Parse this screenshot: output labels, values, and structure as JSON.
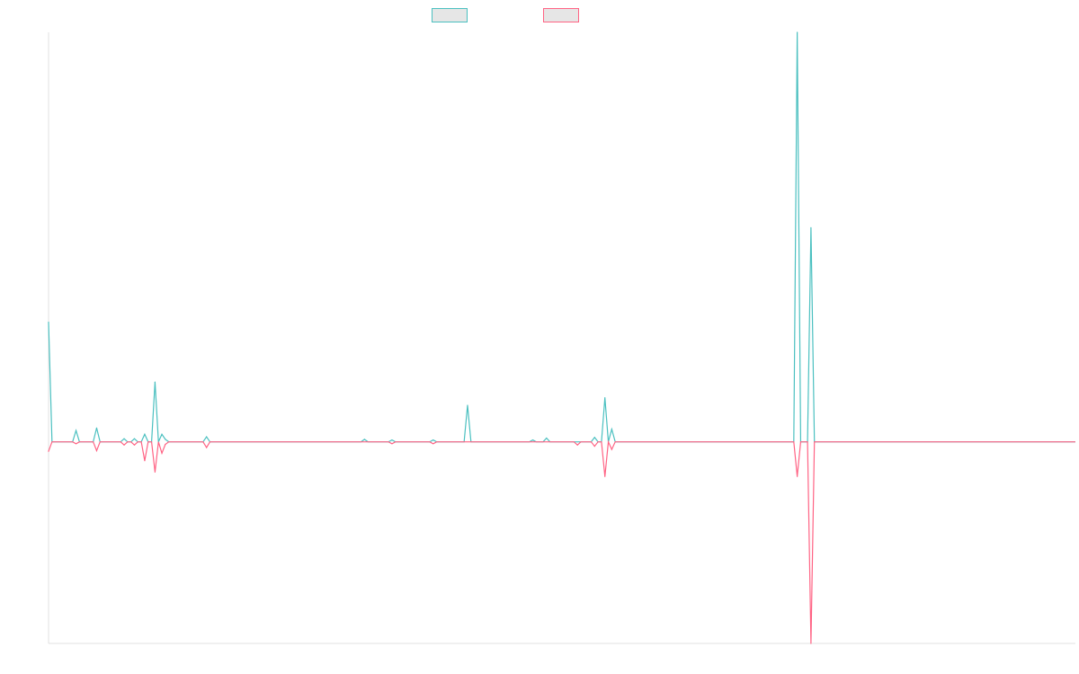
{
  "chart_data": {
    "type": "line",
    "title": "",
    "xlabel": "",
    "ylabel": "",
    "legend_position": "top-center",
    "grid": false,
    "ylim": [
      -0.32,
      0.65
    ],
    "x_count": 300,
    "series": [
      {
        "color": "#4bc0c0",
        "points": [
          [
            0,
            0.19
          ],
          [
            1,
            0.0
          ],
          [
            7,
            0.0
          ],
          [
            8,
            0.018
          ],
          [
            9,
            0.0
          ],
          [
            13,
            0.0
          ],
          [
            14,
            0.022
          ],
          [
            15,
            0.0
          ],
          [
            21,
            0.0
          ],
          [
            22,
            0.005
          ],
          [
            23,
            0.0
          ],
          [
            24,
            0.0
          ],
          [
            25,
            0.005
          ],
          [
            26,
            0.0
          ],
          [
            27,
            0.0
          ],
          [
            28,
            0.012
          ],
          [
            29,
            0.0
          ],
          [
            30,
            0.0
          ],
          [
            31,
            0.095
          ],
          [
            32,
            0.0
          ],
          [
            33,
            0.012
          ],
          [
            34,
            0.004
          ],
          [
            35,
            0.0
          ],
          [
            45,
            0.0
          ],
          [
            46,
            0.008
          ],
          [
            47,
            0.0
          ],
          [
            91,
            0.0
          ],
          [
            92,
            0.004
          ],
          [
            93,
            0.0
          ],
          [
            99,
            0.0
          ],
          [
            100,
            0.003
          ],
          [
            101,
            0.0
          ],
          [
            111,
            0.0
          ],
          [
            112,
            0.003
          ],
          [
            113,
            0.0
          ],
          [
            121,
            0.0
          ],
          [
            122,
            0.058
          ],
          [
            123,
            0.0
          ],
          [
            140,
            0.0
          ],
          [
            141,
            0.003
          ],
          [
            142,
            0.0
          ],
          [
            144,
            0.0
          ],
          [
            145,
            0.006
          ],
          [
            146,
            0.0
          ],
          [
            158,
            0.0
          ],
          [
            159,
            0.007
          ],
          [
            160,
            0.0
          ],
          [
            161,
            0.0
          ],
          [
            162,
            0.07
          ],
          [
            163,
            0.0
          ],
          [
            164,
            0.02
          ],
          [
            165,
            0.0
          ],
          [
            217,
            0.0
          ],
          [
            218,
            0.65
          ],
          [
            219,
            0.0
          ],
          [
            221,
            0.0
          ],
          [
            222,
            0.34
          ],
          [
            223,
            0.0
          ],
          [
            299,
            0.0
          ]
        ]
      },
      {
        "color": "#ff6384",
        "points": [
          [
            0,
            -0.015
          ],
          [
            1,
            0.0
          ],
          [
            7,
            0.0
          ],
          [
            8,
            -0.003
          ],
          [
            9,
            0.0
          ],
          [
            13,
            0.0
          ],
          [
            14,
            -0.014
          ],
          [
            15,
            0.0
          ],
          [
            21,
            0.0
          ],
          [
            22,
            -0.005
          ],
          [
            23,
            0.0
          ],
          [
            24,
            0.0
          ],
          [
            25,
            -0.005
          ],
          [
            26,
            0.0
          ],
          [
            27,
            0.0
          ],
          [
            28,
            -0.03
          ],
          [
            29,
            0.0
          ],
          [
            30,
            0.0
          ],
          [
            31,
            -0.048
          ],
          [
            32,
            0.0
          ],
          [
            33,
            -0.018
          ],
          [
            34,
            -0.004
          ],
          [
            35,
            0.0
          ],
          [
            45,
            0.0
          ],
          [
            46,
            -0.009
          ],
          [
            47,
            0.0
          ],
          [
            99,
            0.0
          ],
          [
            100,
            -0.003
          ],
          [
            101,
            0.0
          ],
          [
            111,
            0.0
          ],
          [
            112,
            -0.003
          ],
          [
            113,
            0.0
          ],
          [
            153,
            0.0
          ],
          [
            154,
            -0.005
          ],
          [
            155,
            0.0
          ],
          [
            158,
            0.0
          ],
          [
            159,
            -0.007
          ],
          [
            160,
            0.0
          ],
          [
            161,
            0.0
          ],
          [
            162,
            -0.055
          ],
          [
            163,
            0.0
          ],
          [
            164,
            -0.012
          ],
          [
            165,
            0.0
          ],
          [
            217,
            0.0
          ],
          [
            218,
            -0.055
          ],
          [
            219,
            0.0
          ],
          [
            221,
            0.0
          ],
          [
            222,
            -0.32
          ],
          [
            223,
            0.0
          ],
          [
            299,
            0.0
          ]
        ]
      }
    ]
  }
}
